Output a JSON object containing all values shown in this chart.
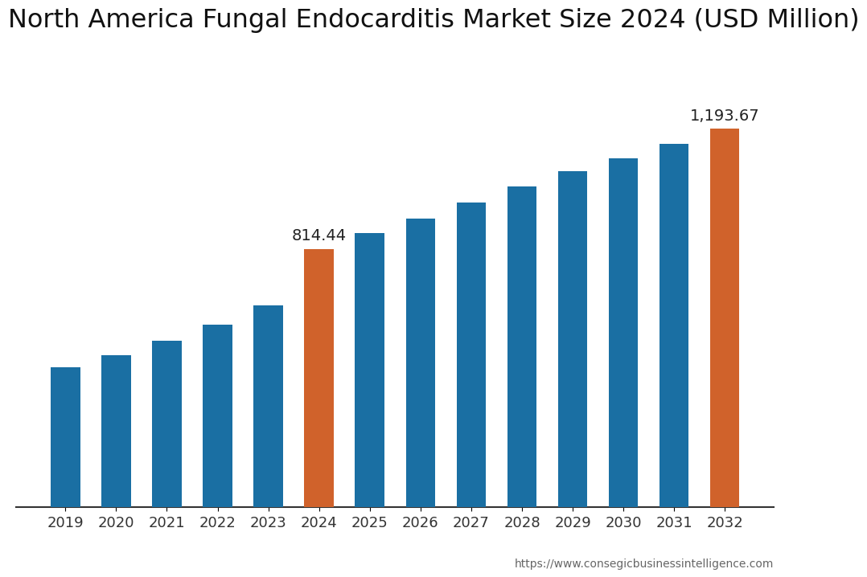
{
  "title": "North America Fungal Endocarditis Market Size 2024 (USD Million)",
  "categories": [
    "2019",
    "2020",
    "2021",
    "2022",
    "2023",
    "2024",
    "2025",
    "2026",
    "2027",
    "2028",
    "2029",
    "2030",
    "2031",
    "2032"
  ],
  "values": [
    440,
    480,
    525,
    575,
    635,
    814.44,
    865,
    910,
    960,
    1010,
    1060,
    1100,
    1145,
    1193.67
  ],
  "bar_colors": [
    "#1a6fa3",
    "#1a6fa3",
    "#1a6fa3",
    "#1a6fa3",
    "#1a6fa3",
    "#d0622b",
    "#1a6fa3",
    "#1a6fa3",
    "#1a6fa3",
    "#1a6fa3",
    "#1a6fa3",
    "#1a6fa3",
    "#1a6fa3",
    "#d0622b"
  ],
  "highlight_labels": {
    "2024": "814.44",
    "2032": "1,193.67"
  },
  "website": "https://www.consegicbusinessintelligence.com",
  "background_color": "#ffffff",
  "title_fontsize": 23,
  "tick_fontsize": 13,
  "label_fontsize": 14,
  "ylim": [
    0,
    1420
  ]
}
